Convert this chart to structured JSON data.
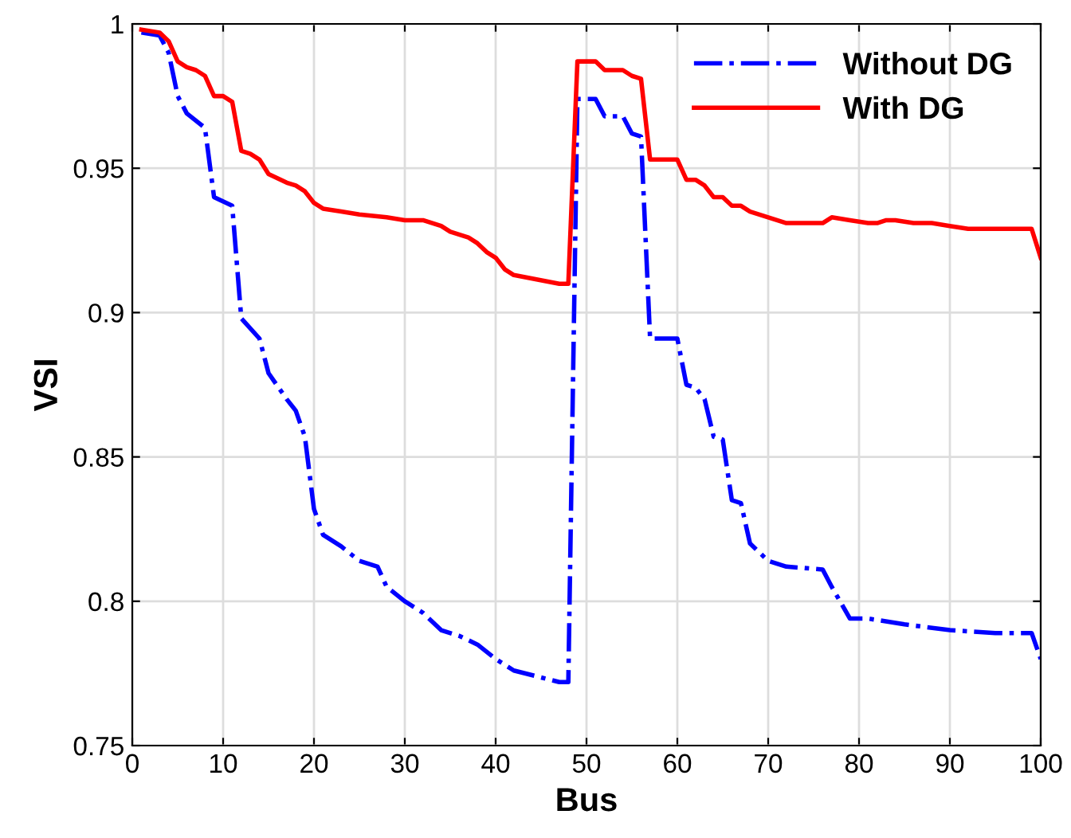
{
  "chart_data": {
    "type": "line",
    "xlabel": "Bus",
    "ylabel": "VSI",
    "xlim": [
      0,
      100
    ],
    "xticks": [
      0,
      10,
      20,
      30,
      40,
      50,
      60,
      70,
      80,
      90,
      100
    ],
    "ylim": [
      0.75,
      1
    ],
    "yticks": [
      0.75,
      0.8,
      0.85,
      0.9,
      0.95,
      1
    ],
    "grid": true,
    "legend": "top right",
    "marker": "none",
    "series": [
      {
        "name": "Without DG",
        "color": "#0000ff",
        "line_style": "dashdot",
        "x": [
          1,
          3,
          4,
          5,
          6,
          8,
          9,
          11,
          12,
          14,
          15,
          17,
          18,
          19,
          20,
          21,
          23,
          25,
          27,
          28,
          30,
          32,
          34,
          36,
          38,
          40,
          42,
          47,
          48,
          49,
          51,
          52,
          54,
          55,
          56,
          57,
          60,
          61,
          62,
          63,
          64,
          65,
          66,
          67,
          68,
          70,
          72,
          76,
          77,
          79,
          81,
          85,
          90,
          95,
          99,
          100
        ],
        "values": [
          0.997,
          0.996,
          0.99,
          0.975,
          0.969,
          0.964,
          0.94,
          0.937,
          0.898,
          0.891,
          0.879,
          0.87,
          0.866,
          0.857,
          0.832,
          0.823,
          0.819,
          0.814,
          0.812,
          0.805,
          0.8,
          0.796,
          0.79,
          0.788,
          0.785,
          0.78,
          0.776,
          0.772,
          0.772,
          0.974,
          0.974,
          0.968,
          0.968,
          0.962,
          0.961,
          0.891,
          0.891,
          0.875,
          0.874,
          0.87,
          0.857,
          0.856,
          0.835,
          0.834,
          0.82,
          0.814,
          0.812,
          0.811,
          0.805,
          0.794,
          0.794,
          0.792,
          0.79,
          0.789,
          0.789,
          0.78
        ]
      },
      {
        "name": "With DG",
        "color": "#ff0000",
        "line_style": "solid",
        "x": [
          1,
          3,
          4,
          5,
          6,
          7,
          8,
          9,
          10,
          11,
          12,
          13,
          14,
          15,
          17,
          18,
          19,
          20,
          21,
          23,
          25,
          28,
          30,
          32,
          34,
          35,
          37,
          38,
          39,
          40,
          41,
          42,
          47,
          48,
          49,
          51,
          52,
          54,
          55,
          56,
          57,
          60,
          61,
          62,
          63,
          64,
          65,
          66,
          67,
          68,
          70,
          72,
          76,
          77,
          79,
          81,
          82,
          83,
          84,
          86,
          88,
          90,
          92,
          95,
          99,
          100
        ],
        "values": [
          0.998,
          0.997,
          0.994,
          0.987,
          0.985,
          0.984,
          0.982,
          0.975,
          0.975,
          0.973,
          0.956,
          0.955,
          0.953,
          0.948,
          0.945,
          0.944,
          0.942,
          0.938,
          0.936,
          0.935,
          0.934,
          0.933,
          0.932,
          0.932,
          0.93,
          0.928,
          0.926,
          0.924,
          0.921,
          0.919,
          0.915,
          0.913,
          0.91,
          0.91,
          0.987,
          0.987,
          0.984,
          0.984,
          0.982,
          0.981,
          0.953,
          0.953,
          0.946,
          0.946,
          0.944,
          0.94,
          0.94,
          0.937,
          0.937,
          0.935,
          0.933,
          0.931,
          0.931,
          0.933,
          0.932,
          0.931,
          0.931,
          0.932,
          0.932,
          0.931,
          0.931,
          0.93,
          0.929,
          0.929,
          0.929,
          0.919
        ]
      }
    ]
  }
}
